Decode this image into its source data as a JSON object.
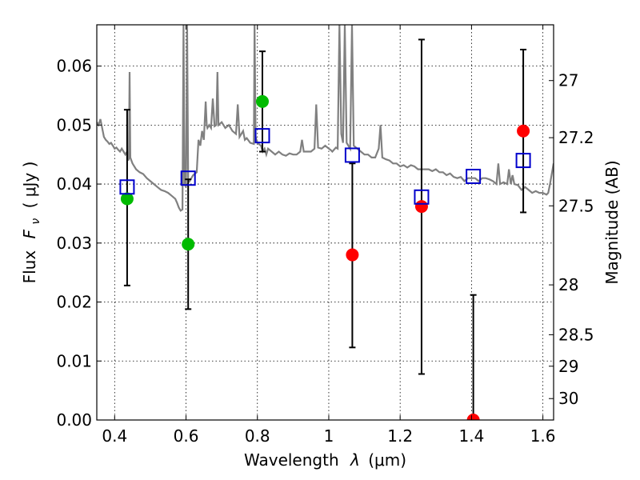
{
  "chart_data": {
    "type": "scatter",
    "title": "",
    "xlabel_text": "Wavelength",
    "xlabel_symbol": "λ",
    "xlabel_unit": "(μm)",
    "ylabel_text": "Flux",
    "ylabel_symbol": "F",
    "ylabel_subscript": "ν",
    "ylabel_unit": "( μJy )",
    "y2label": "Magnitude (AB)",
    "xlim": [
      0.35,
      1.63
    ],
    "ylim": [
      0.0,
      0.067
    ],
    "grid": true,
    "x_ticks": [
      {
        "v": 0.4,
        "label": "0.4"
      },
      {
        "v": 0.6,
        "label": "0.6"
      },
      {
        "v": 0.8,
        "label": "0.8"
      },
      {
        "v": 1.0,
        "label": "1"
      },
      {
        "v": 1.2,
        "label": "1.2"
      },
      {
        "v": 1.4,
        "label": "1.4"
      },
      {
        "v": 1.6,
        "label": "1.6"
      }
    ],
    "y_ticks": [
      {
        "v": 0.0,
        "label": "0.00"
      },
      {
        "v": 0.01,
        "label": "0.01"
      },
      {
        "v": 0.02,
        "label": "0.02"
      },
      {
        "v": 0.03,
        "label": "0.03"
      },
      {
        "v": 0.04,
        "label": "0.04"
      },
      {
        "v": 0.05,
        "label": "0.05"
      },
      {
        "v": 0.06,
        "label": "0.06"
      }
    ],
    "y2_ticks": [
      {
        "mag": 27,
        "label": "27"
      },
      {
        "mag": 27.2,
        "label": "27.2"
      },
      {
        "mag": 27.5,
        "label": "27.5"
      },
      {
        "mag": 28,
        "label": "28"
      },
      {
        "mag": 28.5,
        "label": "28.5"
      },
      {
        "mag": 29,
        "label": "29"
      },
      {
        "mag": 30,
        "label": "30"
      }
    ],
    "model_spectrum": {
      "name": "",
      "color": "#808080",
      "points": [
        [
          0.35,
          0.0505
        ],
        [
          0.355,
          0.05
        ],
        [
          0.36,
          0.051
        ],
        [
          0.365,
          0.0495
        ],
        [
          0.37,
          0.048
        ],
        [
          0.375,
          0.0475
        ],
        [
          0.38,
          0.0472
        ],
        [
          0.385,
          0.0468
        ],
        [
          0.39,
          0.047
        ],
        [
          0.395,
          0.0465
        ],
        [
          0.4,
          0.046
        ],
        [
          0.405,
          0.0462
        ],
        [
          0.41,
          0.0458
        ],
        [
          0.415,
          0.0455
        ],
        [
          0.42,
          0.046
        ],
        [
          0.425,
          0.0455
        ],
        [
          0.43,
          0.045
        ],
        [
          0.435,
          0.0455
        ],
        [
          0.438,
          0.044
        ],
        [
          0.44,
          0.0443
        ],
        [
          0.442,
          0.059
        ],
        [
          0.444,
          0.0445
        ],
        [
          0.45,
          0.0435
        ],
        [
          0.46,
          0.0425
        ],
        [
          0.47,
          0.042
        ],
        [
          0.48,
          0.0417
        ],
        [
          0.49,
          0.041
        ],
        [
          0.5,
          0.0405
        ],
        [
          0.51,
          0.04
        ],
        [
          0.52,
          0.0395
        ],
        [
          0.53,
          0.039
        ],
        [
          0.54,
          0.0388
        ],
        [
          0.55,
          0.0385
        ],
        [
          0.56,
          0.038
        ],
        [
          0.57,
          0.0375
        ],
        [
          0.575,
          0.0368
        ],
        [
          0.58,
          0.036
        ],
        [
          0.585,
          0.0355
        ],
        [
          0.59,
          0.0357
        ],
        [
          0.593,
          0.067
        ],
        [
          0.596,
          0.04
        ],
        [
          0.6,
          0.0395
        ],
        [
          0.603,
          0.067
        ],
        [
          0.606,
          0.041
        ],
        [
          0.61,
          0.0405
        ],
        [
          0.615,
          0.041
        ],
        [
          0.62,
          0.0415
        ],
        [
          0.63,
          0.042
        ],
        [
          0.635,
          0.0475
        ],
        [
          0.64,
          0.0465
        ],
        [
          0.645,
          0.049
        ],
        [
          0.65,
          0.0475
        ],
        [
          0.655,
          0.054
        ],
        [
          0.658,
          0.05
        ],
        [
          0.66,
          0.0495
        ],
        [
          0.665,
          0.05
        ],
        [
          0.67,
          0.0495
        ],
        [
          0.675,
          0.0545
        ],
        [
          0.68,
          0.0498
        ],
        [
          0.685,
          0.05
        ],
        [
          0.688,
          0.059
        ],
        [
          0.691,
          0.05
        ],
        [
          0.7,
          0.0505
        ],
        [
          0.71,
          0.0495
        ],
        [
          0.72,
          0.05
        ],
        [
          0.73,
          0.049
        ],
        [
          0.74,
          0.0485
        ],
        [
          0.745,
          0.0535
        ],
        [
          0.75,
          0.048
        ],
        [
          0.76,
          0.049
        ],
        [
          0.765,
          0.0475
        ],
        [
          0.77,
          0.0478
        ],
        [
          0.78,
          0.047
        ],
        [
          0.79,
          0.0468
        ],
        [
          0.792,
          0.067
        ],
        [
          0.795,
          0.048
        ],
        [
          0.8,
          0.047
        ],
        [
          0.81,
          0.0465
        ],
        [
          0.815,
          0.0455
        ],
        [
          0.82,
          0.046
        ],
        [
          0.825,
          0.045
        ],
        [
          0.83,
          0.046
        ],
        [
          0.84,
          0.0455
        ],
        [
          0.85,
          0.045
        ],
        [
          0.86,
          0.0455
        ],
        [
          0.87,
          0.045
        ],
        [
          0.88,
          0.0448
        ],
        [
          0.89,
          0.0452
        ],
        [
          0.9,
          0.045
        ],
        [
          0.91,
          0.045
        ],
        [
          0.92,
          0.0455
        ],
        [
          0.925,
          0.0475
        ],
        [
          0.93,
          0.0455
        ],
        [
          0.94,
          0.0455
        ],
        [
          0.95,
          0.0455
        ],
        [
          0.96,
          0.046
        ],
        [
          0.965,
          0.0535
        ],
        [
          0.97,
          0.0462
        ],
        [
          0.98,
          0.046
        ],
        [
          0.99,
          0.0465
        ],
        [
          1.0,
          0.046
        ],
        [
          1.005,
          0.0458
        ],
        [
          1.01,
          0.0455
        ],
        [
          1.02,
          0.0462
        ],
        [
          1.025,
          0.046
        ],
        [
          1.03,
          0.067
        ],
        [
          1.035,
          0.0485
        ],
        [
          1.04,
          0.047
        ],
        [
          1.045,
          0.067
        ],
        [
          1.05,
          0.047
        ],
        [
          1.06,
          0.046
        ],
        [
          1.065,
          0.067
        ],
        [
          1.07,
          0.0465
        ],
        [
          1.08,
          0.046
        ],
        [
          1.09,
          0.0455
        ],
        [
          1.1,
          0.045
        ],
        [
          1.11,
          0.045
        ],
        [
          1.12,
          0.0445
        ],
        [
          1.13,
          0.0445
        ],
        [
          1.14,
          0.046
        ],
        [
          1.145,
          0.05
        ],
        [
          1.15,
          0.0445
        ],
        [
          1.16,
          0.0442
        ],
        [
          1.17,
          0.044
        ],
        [
          1.18,
          0.0435
        ],
        [
          1.19,
          0.0435
        ],
        [
          1.2,
          0.043
        ],
        [
          1.21,
          0.0432
        ],
        [
          1.22,
          0.0428
        ],
        [
          1.23,
          0.0432
        ],
        [
          1.24,
          0.043
        ],
        [
          1.25,
          0.0425
        ],
        [
          1.26,
          0.0425
        ],
        [
          1.27,
          0.0425
        ],
        [
          1.28,
          0.0425
        ],
        [
          1.29,
          0.0422
        ],
        [
          1.3,
          0.0425
        ],
        [
          1.31,
          0.042
        ],
        [
          1.32,
          0.042
        ],
        [
          1.33,
          0.0415
        ],
        [
          1.34,
          0.0418
        ],
        [
          1.35,
          0.0412
        ],
        [
          1.36,
          0.041
        ],
        [
          1.37,
          0.0412
        ],
        [
          1.38,
          0.0405
        ],
        [
          1.39,
          0.041
        ],
        [
          1.4,
          0.041
        ],
        [
          1.41,
          0.041
        ],
        [
          1.42,
          0.0405
        ],
        [
          1.43,
          0.041
        ],
        [
          1.44,
          0.041
        ],
        [
          1.45,
          0.0408
        ],
        [
          1.46,
          0.0405
        ],
        [
          1.47,
          0.04
        ],
        [
          1.475,
          0.0435
        ],
        [
          1.48,
          0.04
        ],
        [
          1.49,
          0.0403
        ],
        [
          1.5,
          0.04
        ],
        [
          1.505,
          0.0425
        ],
        [
          1.51,
          0.04
        ],
        [
          1.515,
          0.0415
        ],
        [
          1.52,
          0.04
        ],
        [
          1.53,
          0.0398
        ],
        [
          1.54,
          0.039
        ],
        [
          1.55,
          0.0395
        ],
        [
          1.56,
          0.039
        ],
        [
          1.57,
          0.0385
        ],
        [
          1.58,
          0.0388
        ],
        [
          1.59,
          0.0385
        ],
        [
          1.6,
          0.0385
        ],
        [
          1.61,
          0.0382
        ],
        [
          1.615,
          0.0385
        ],
        [
          1.62,
          0.04
        ],
        [
          1.63,
          0.0435
        ]
      ]
    },
    "photometry": [
      {
        "x": 0.435,
        "y": 0.0375,
        "color": "#00bb00"
      },
      {
        "x": 0.606,
        "y": 0.0298,
        "color": "#00bb00"
      },
      {
        "x": 0.814,
        "y": 0.054,
        "color": "#00bb00"
      },
      {
        "x": 1.066,
        "y": 0.028,
        "color": "#ff0000"
      },
      {
        "x": 1.26,
        "y": 0.0362,
        "color": "#ff0000"
      },
      {
        "x": 1.405,
        "y": 0.0,
        "color": "#ff0000"
      },
      {
        "x": 1.545,
        "y": 0.049,
        "color": "#ff0000"
      }
    ],
    "error_bars": [
      {
        "x": 0.435,
        "low": 0.0228,
        "high": 0.0526
      },
      {
        "x": 0.606,
        "low": 0.0188,
        "high": 0.0408
      },
      {
        "x": 0.814,
        "low": 0.0455,
        "high": 0.0625
      },
      {
        "x": 1.066,
        "low": 0.0123,
        "high": 0.0435
      },
      {
        "x": 1.26,
        "low": 0.0078,
        "high": 0.0645
      },
      {
        "x": 1.405,
        "low": -0.001,
        "high": 0.0212
      },
      {
        "x": 1.545,
        "low": 0.0352,
        "high": 0.0628
      }
    ],
    "model_photometry": [
      {
        "x": 0.435,
        "y": 0.0395
      },
      {
        "x": 0.606,
        "y": 0.041
      },
      {
        "x": 0.814,
        "y": 0.0482
      },
      {
        "x": 1.066,
        "y": 0.0449
      },
      {
        "x": 1.26,
        "y": 0.0378
      },
      {
        "x": 1.405,
        "y": 0.0413
      },
      {
        "x": 1.545,
        "y": 0.044
      }
    ],
    "colors": {
      "model_photometry_edge": "#0000cc",
      "error_bar": "#000000"
    }
  }
}
